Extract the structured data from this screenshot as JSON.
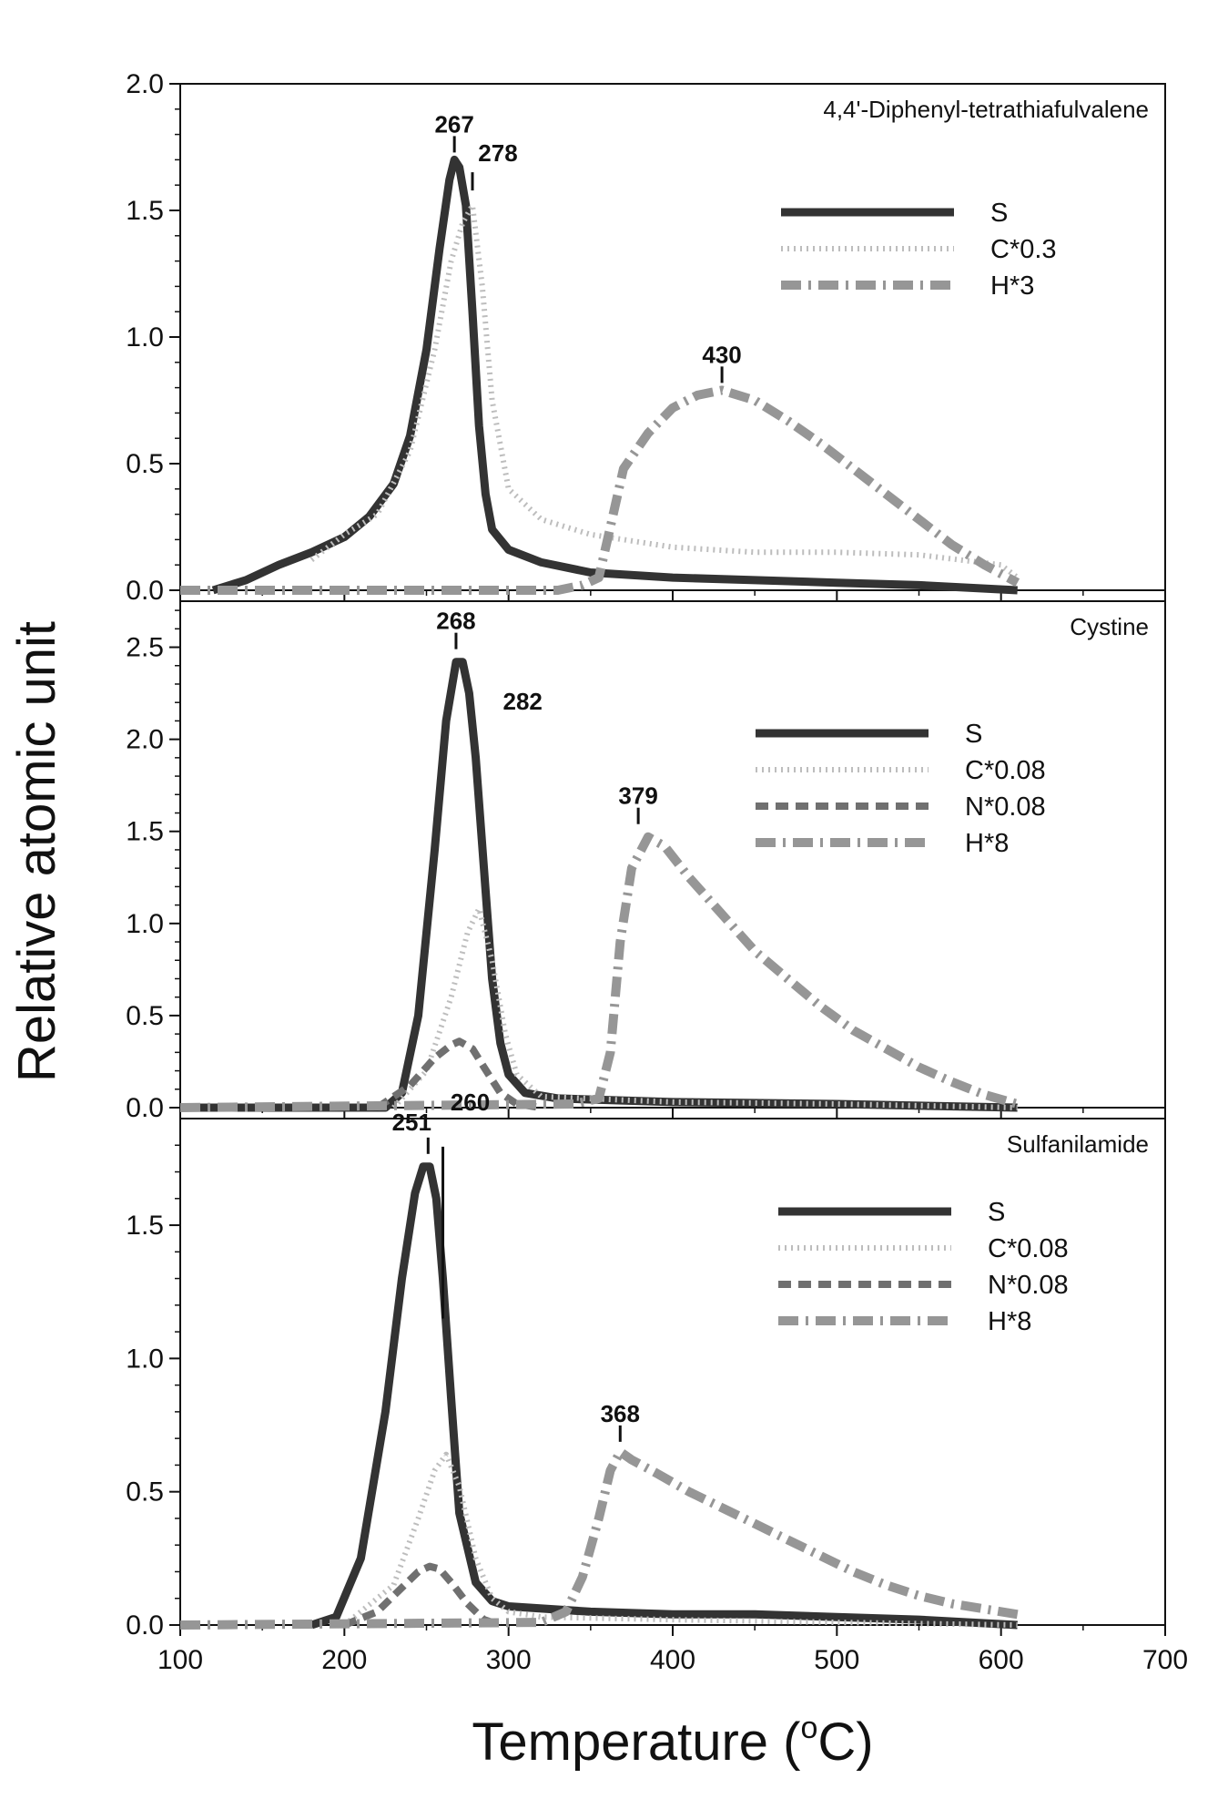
{
  "chart_data": {
    "type": "line",
    "xlabel": "Temperature (°C)",
    "xlabel_parts": {
      "main": "Temperature (",
      "sup": "o",
      "end": "C)"
    },
    "ylabel": "Relative atomic unit",
    "xlim": [
      100,
      700
    ],
    "xticks": [
      "100",
      "200",
      "300",
      "400",
      "500",
      "600",
      "700"
    ],
    "colors": {
      "S": "#333333",
      "C": "#bdbdbd",
      "N": "#707070",
      "H": "#969696"
    },
    "panels": [
      {
        "title": "4,4'-Diphenyl-tetrathiafulvalene",
        "ylim": [
          0,
          2.0
        ],
        "yticks": [
          "0.0",
          "0.5",
          "1.0",
          "1.5",
          "2.0"
        ],
        "annotations": [
          {
            "label": "267",
            "x": 267,
            "y": 1.7
          },
          {
            "label": "278",
            "x": 278,
            "y": 1.55
          },
          {
            "label": "430",
            "x": 430,
            "y": 0.79
          }
        ],
        "series": [
          {
            "name": "S",
            "style": "solid",
            "x": [
              120,
              140,
              160,
              180,
              200,
              215,
              230,
              240,
              250,
              258,
              264,
              267,
              270,
              274,
              278,
              282,
              286,
              290,
              300,
              320,
              350,
              400,
              450,
              500,
              550,
              610
            ],
            "y": [
              0.0,
              0.04,
              0.1,
              0.15,
              0.21,
              0.29,
              0.42,
              0.61,
              0.95,
              1.35,
              1.62,
              1.7,
              1.67,
              1.52,
              1.1,
              0.65,
              0.38,
              0.24,
              0.16,
              0.11,
              0.07,
              0.05,
              0.04,
              0.03,
              0.02,
              0.0
            ]
          },
          {
            "name": "C*0.3",
            "style": "dotted",
            "x": [
              180,
              200,
              220,
              240,
              255,
              265,
              272,
              278,
              284,
              290,
              300,
              320,
              350,
              400,
              450,
              500,
              550,
              600,
              610
            ],
            "y": [
              0.12,
              0.22,
              0.3,
              0.55,
              0.95,
              1.3,
              1.45,
              1.52,
              1.2,
              0.75,
              0.4,
              0.28,
              0.22,
              0.17,
              0.15,
              0.15,
              0.14,
              0.1,
              0.05
            ]
          },
          {
            "name": "H*3",
            "style": "dashdot",
            "x": [
              100,
              330,
              345,
              355,
              362,
              370,
              385,
              400,
              415,
              430,
              450,
              470,
              490,
              510,
              530,
              550,
              570,
              590,
              610
            ],
            "y": [
              0.0,
              0.0,
              0.02,
              0.05,
              0.25,
              0.48,
              0.62,
              0.72,
              0.77,
              0.79,
              0.75,
              0.67,
              0.58,
              0.48,
              0.38,
              0.28,
              0.18,
              0.1,
              0.03
            ]
          }
        ],
        "legend": [
          "S",
          "C*0.3",
          "H*3"
        ]
      },
      {
        "title": "Cystine",
        "ylim": [
          0,
          2.75
        ],
        "yticks": [
          "0.0",
          "0.5",
          "1.0",
          "1.5",
          "2.0",
          "2.5"
        ],
        "annotations": [
          {
            "label": "268",
            "x": 268,
            "y": 2.45
          },
          {
            "label": "282",
            "x": 282,
            "y": 2.2
          },
          {
            "label": "379",
            "x": 379,
            "y": 1.5
          }
        ],
        "series": [
          {
            "name": "S",
            "style": "solid",
            "x": [
              100,
              225,
              235,
              245,
              255,
              262,
              268,
              272,
              276,
              280,
              285,
              290,
              295,
              300,
              310,
              330,
              400,
              500,
              610
            ],
            "y": [
              0.0,
              0.0,
              0.08,
              0.5,
              1.4,
              2.1,
              2.42,
              2.42,
              2.25,
              1.9,
              1.3,
              0.7,
              0.35,
              0.18,
              0.08,
              0.05,
              0.03,
              0.02,
              0.0
            ]
          },
          {
            "name": "C*0.08",
            "style": "dotted",
            "x": [
              230,
              250,
              265,
              275,
              282,
              290,
              298,
              305,
              320,
              400,
              500,
              610
            ],
            "y": [
              0.0,
              0.2,
              0.6,
              0.95,
              1.08,
              0.8,
              0.4,
              0.18,
              0.06,
              0.03,
              0.02,
              0.0
            ]
          },
          {
            "name": "N*0.08",
            "style": "dashed",
            "x": [
              220,
              240,
              255,
              265,
              270,
              278,
              285,
              295,
              305,
              320
            ],
            "y": [
              0.0,
              0.12,
              0.27,
              0.34,
              0.36,
              0.32,
              0.22,
              0.08,
              0.02,
              0.0
            ]
          },
          {
            "name": "H*8",
            "style": "dashdot",
            "x": [
              100,
              340,
              355,
              362,
              368,
              375,
              385,
              395,
              410,
              430,
              450,
              470,
              490,
              510,
              530,
              550,
              570,
              590,
              610
            ],
            "y": [
              0.0,
              0.02,
              0.05,
              0.3,
              0.9,
              1.3,
              1.47,
              1.42,
              1.25,
              1.05,
              0.85,
              0.7,
              0.55,
              0.42,
              0.32,
              0.22,
              0.14,
              0.07,
              0.02
            ]
          }
        ],
        "legend": [
          "S",
          "C*0.08",
          "N*0.08",
          "H*8"
        ]
      },
      {
        "title": "Sulfanilamide",
        "ylim": [
          0,
          1.9
        ],
        "yticks": [
          "0.0",
          "0.5",
          "1.0",
          "1.5"
        ],
        "annotations": [
          {
            "label": "251",
            "x": 251,
            "y": 1.74
          },
          {
            "label": "260",
            "x": 260,
            "y": 1.74
          },
          {
            "label": "368",
            "x": 368,
            "y": 0.66
          }
        ],
        "series": [
          {
            "name": "S",
            "style": "solid",
            "x": [
              180,
              195,
              210,
              225,
              235,
              243,
              248,
              252,
              256,
              260,
              265,
              270,
              280,
              290,
              300,
              350,
              400,
              450,
              500,
              550,
              610
            ],
            "y": [
              0.0,
              0.03,
              0.25,
              0.8,
              1.3,
              1.62,
              1.72,
              1.72,
              1.6,
              1.3,
              0.85,
              0.42,
              0.16,
              0.09,
              0.07,
              0.05,
              0.04,
              0.04,
              0.03,
              0.02,
              0.0
            ]
          },
          {
            "name": "C*0.08",
            "style": "dotted",
            "x": [
              200,
              230,
              245,
              255,
              262,
              270,
              280,
              290,
              300,
              320,
              400,
              500,
              610
            ],
            "y": [
              0.0,
              0.15,
              0.4,
              0.58,
              0.64,
              0.52,
              0.25,
              0.1,
              0.05,
              0.03,
              0.02,
              0.01,
              0.0
            ]
          },
          {
            "name": "N*0.08",
            "style": "dashed",
            "x": [
              200,
              220,
              235,
              245,
              252,
              258,
              265,
              275,
              285,
              295
            ],
            "y": [
              0.0,
              0.05,
              0.14,
              0.2,
              0.22,
              0.21,
              0.16,
              0.08,
              0.02,
              0.0
            ]
          },
          {
            "name": "H*8",
            "style": "dashdot",
            "x": [
              100,
              320,
              335,
              345,
              355,
              362,
              368,
              375,
              390,
              410,
              430,
              450,
              470,
              490,
              510,
              530,
              550,
              570,
              590,
              610
            ],
            "y": [
              0.0,
              0.01,
              0.05,
              0.18,
              0.4,
              0.58,
              0.65,
              0.62,
              0.57,
              0.5,
              0.44,
              0.38,
              0.32,
              0.26,
              0.2,
              0.15,
              0.11,
              0.08,
              0.06,
              0.04
            ]
          }
        ],
        "legend": [
          "S",
          "C*0.08",
          "N*0.08",
          "H*8"
        ]
      }
    ]
  }
}
